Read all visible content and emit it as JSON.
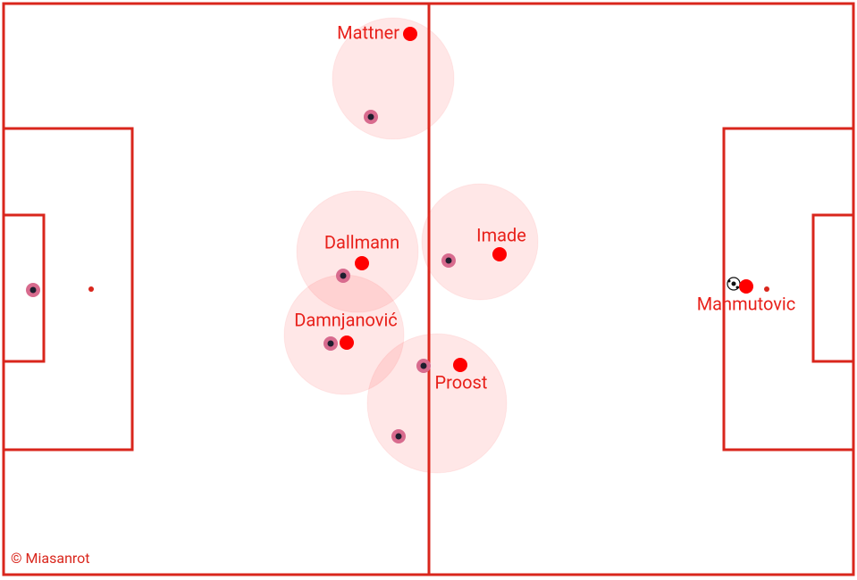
{
  "players": [
    {
      "name": "Mattner"
    },
    {
      "name": "Dallmann"
    },
    {
      "name": "Imade"
    },
    {
      "name": "Damnjanović"
    },
    {
      "name": "Proost"
    },
    {
      "name": "Mahmutovic"
    }
  ],
  "credit": "© Miasanrot"
}
